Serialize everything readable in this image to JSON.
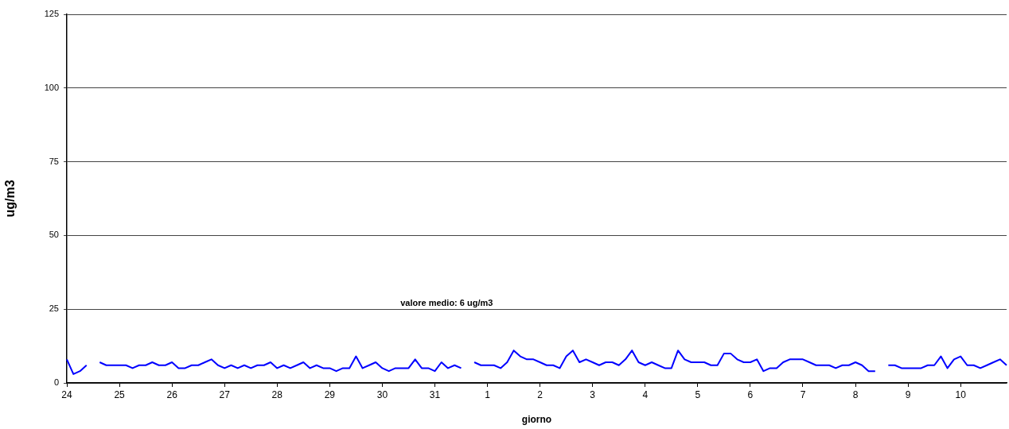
{
  "chart_data": {
    "type": "line",
    "xlabel": "giorno",
    "ylabel": "ug/m3",
    "annotations": [
      "valore medio: 6 ug/m3"
    ],
    "categories": [
      "24",
      null,
      null,
      null,
      null,
      null,
      null,
      null,
      "25",
      null,
      null,
      null,
      null,
      null,
      null,
      null,
      "26",
      null,
      null,
      null,
      null,
      null,
      null,
      null,
      "27",
      null,
      null,
      null,
      null,
      null,
      null,
      null,
      "28",
      null,
      null,
      null,
      null,
      null,
      null,
      null,
      "29",
      null,
      null,
      null,
      null,
      null,
      null,
      null,
      "30",
      null,
      null,
      null,
      null,
      null,
      null,
      null,
      "31",
      null,
      null,
      null,
      null,
      null,
      null,
      null,
      "1",
      null,
      null,
      null,
      null,
      null,
      null,
      null,
      "2",
      null,
      null,
      null,
      null,
      null,
      null,
      null,
      "3",
      null,
      null,
      null,
      null,
      null,
      null,
      null,
      "4",
      null,
      null,
      null,
      null,
      null,
      null,
      null,
      "5",
      null,
      null,
      null,
      null,
      null,
      null,
      null,
      "6",
      null,
      null,
      null,
      null,
      null,
      null,
      null,
      "7",
      null,
      null,
      null,
      null,
      null,
      null,
      null,
      "8",
      null,
      null,
      null,
      null,
      null,
      null,
      null,
      "9",
      null,
      null,
      null,
      null,
      null,
      null,
      null,
      "10",
      null,
      null,
      null,
      null,
      null,
      null,
      null
    ],
    "ylim": [
      0,
      125
    ],
    "yticks": [
      0,
      25,
      50,
      75,
      100,
      125
    ],
    "series": [
      {
        "color": "#0000ff",
        "values": [
          8,
          3,
          4,
          6,
          null,
          7,
          6,
          6,
          6,
          6,
          5,
          6,
          6,
          7,
          6,
          6,
          7,
          5,
          5,
          6,
          6,
          7,
          8,
          6,
          5,
          6,
          5,
          6,
          5,
          6,
          6,
          7,
          5,
          6,
          5,
          6,
          7,
          5,
          6,
          5,
          5,
          4,
          5,
          5,
          9,
          5,
          6,
          7,
          5,
          4,
          5,
          5,
          5,
          8,
          5,
          5,
          4,
          7,
          5,
          6,
          5,
          null,
          7,
          6,
          6,
          6,
          5,
          7,
          11,
          9,
          8,
          8,
          7,
          6,
          6,
          5,
          9,
          11,
          7,
          8,
          7,
          6,
          7,
          7,
          6,
          8,
          11,
          7,
          6,
          7,
          6,
          5,
          5,
          11,
          8,
          7,
          7,
          7,
          6,
          6,
          10,
          10,
          8,
          7,
          7,
          8,
          4,
          5,
          5,
          7,
          8,
          8,
          8,
          7,
          6,
          6,
          6,
          5,
          6,
          6,
          7,
          6,
          4,
          4,
          null,
          6,
          6,
          5,
          5,
          5,
          5,
          6,
          6,
          9,
          5,
          8,
          9,
          6,
          6,
          5,
          6,
          7,
          8,
          6
        ]
      }
    ],
    "grid": "y",
    "legend": false,
    "marker": "none",
    "line_style": "solid"
  }
}
